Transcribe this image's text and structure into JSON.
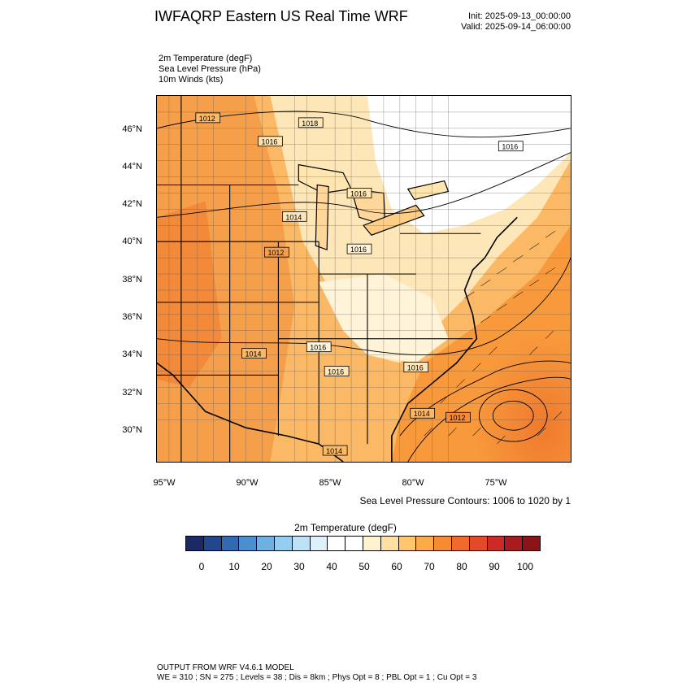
{
  "header": {
    "title": "IWFAQRP Eastern US Real Time WRF",
    "init": "Init: 2025-09-13_00:00:00",
    "valid": "Valid: 2025-09-14_06:00:00"
  },
  "fields": [
    "2m Temperature   (degF)",
    "Sea Level Pressure   (hPa)",
    "10m Winds   (kts)"
  ],
  "map": {
    "lat_labels": [
      "46°N",
      "44°N",
      "42°N",
      "40°N",
      "38°N",
      "36°N",
      "34°N",
      "32°N",
      "30°N"
    ],
    "lon_labels": [
      "95°W",
      "90°W",
      "85°W",
      "80°W",
      "75°W"
    ],
    "pressure_labels": [
      "1012",
      "1018",
      "1016",
      "1014",
      "1012",
      "1016",
      "1016",
      "1014",
      "1016",
      "1016",
      "1016",
      "1014",
      "1012",
      "1014",
      "1016"
    ],
    "contour_note": "Sea Level Pressure Contours: 1006 to 1020 by 1"
  },
  "colorbar": {
    "title": "2m Temperature  (degF)",
    "colors": [
      "#1b2a66",
      "#23478f",
      "#2f6ab2",
      "#4a8fd0",
      "#6db0e3",
      "#93cdf0",
      "#bde2f6",
      "#def1fb",
      "#ffffff",
      "#ffffff",
      "#fff3cf",
      "#ffe0a0",
      "#ffc66c",
      "#fdab48",
      "#f78b33",
      "#ef6a2c",
      "#e34a2b",
      "#cc2a26",
      "#a81b1f",
      "#8a1417"
    ],
    "labels": [
      "0",
      "10",
      "20",
      "30",
      "40",
      "50",
      "60",
      "70",
      "80",
      "90",
      "100"
    ]
  },
  "footer": {
    "line1": "OUTPUT FROM WRF V4.6.1 MODEL",
    "line2": "WE = 310 ; SN = 275 ; Levels = 38 ; Dis = 8km ; Phys Opt = 8 ; PBL Opt = 1 ; Cu Opt = 3"
  }
}
